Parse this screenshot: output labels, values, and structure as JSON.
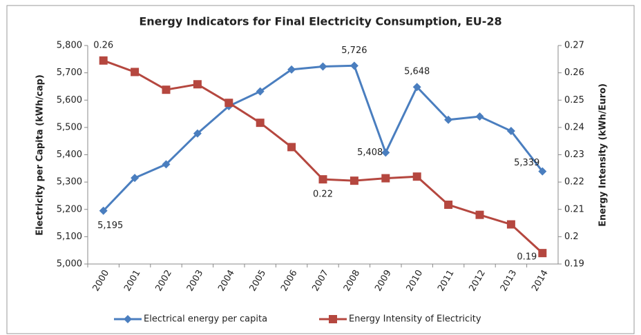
{
  "chart_data": {
    "type": "line",
    "title": "Energy Indicators for Final Electricity Consumption, EU-28",
    "y_label": "Electricity per Capita (kWh/cap)",
    "y2_label": "Energy Intensity (kWh/Euro)",
    "categories": [
      "2000",
      "2001",
      "2002",
      "2003",
      "2004",
      "2005",
      "2006",
      "2007",
      "2008",
      "2009",
      "2010",
      "2011",
      "2012",
      "2013",
      "2014"
    ],
    "series": [
      {
        "name": "Electrical energy per capita",
        "color": "#4a7ebf",
        "marker": "diamond",
        "values": [
          5195,
          5315,
          5365,
          5478,
          5578,
          5632,
          5712,
          5723,
          5726,
          5408,
          5648,
          5528,
          5540,
          5487,
          5339
        ],
        "value_labels": [
          "5,195",
          null,
          null,
          null,
          null,
          null,
          null,
          null,
          "5,726",
          "5,408",
          "5,648",
          null,
          null,
          null,
          "5,339"
        ]
      },
      {
        "name": "Energy Intensity of Electricity",
        "color": "#b5473f",
        "marker": "square",
        "axis": "y2",
        "values": [
          0.2645,
          0.2603,
          0.2538,
          0.2558,
          0.249,
          0.2417,
          0.2328,
          0.221,
          0.2205,
          0.2214,
          0.222,
          0.2117,
          0.208,
          0.2045,
          0.194
        ],
        "value_labels": [
          "0.26",
          null,
          null,
          null,
          null,
          null,
          null,
          "0.22",
          null,
          null,
          null,
          null,
          null,
          null,
          "0.19"
        ]
      }
    ],
    "ylim": [
      5000,
      5800
    ],
    "yticks": [
      {
        "value": 5000,
        "label": "5,000"
      },
      {
        "value": 5100,
        "label": "5,100"
      },
      {
        "value": 5200,
        "label": "5,200"
      },
      {
        "value": 5300,
        "label": "5,300"
      },
      {
        "value": 5400,
        "label": "5,400"
      },
      {
        "value": 5500,
        "label": "5,500"
      },
      {
        "value": 5600,
        "label": "5,600"
      },
      {
        "value": 5700,
        "label": "5,700"
      },
      {
        "value": 5800,
        "label": "5,800"
      }
    ],
    "y2lim": [
      0.19,
      0.27
    ],
    "y2ticks": [
      0.19,
      0.2,
      0.21,
      0.22,
      0.23,
      0.24,
      0.25,
      0.26,
      0.27
    ],
    "grid": false,
    "legend": "bottom"
  }
}
